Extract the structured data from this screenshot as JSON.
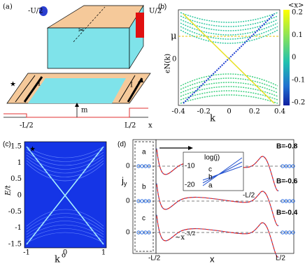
{
  "panel_a": {
    "label": "(a)",
    "voltage_left": "-U/2",
    "voltage_right": "U/2",
    "current_left": "I",
    "current_right": "I",
    "field": "m",
    "edge_left": "-L/2",
    "edge_right": "L/2",
    "axis": "x"
  },
  "panel_b": {
    "label": "(b)",
    "mu": "μ",
    "y_label": "ϵN(k)",
    "y_tick": "0",
    "x_label": "k",
    "x_ticks": [
      "-0.4",
      "-0.2",
      "0",
      "0.2",
      "0.4"
    ],
    "colorbar_label": "<x>",
    "colorbar_ticks": [
      "0.2",
      "0.1",
      "0",
      "-0.1",
      "-0.2"
    ]
  },
  "panel_c": {
    "label": "(c)",
    "y_label": "E/t",
    "y_ticks": [
      "1.5",
      "1",
      "0.5",
      "0",
      "-0.5",
      "-1",
      "-1.5"
    ],
    "x_ticks": [
      "-1",
      "0",
      "1"
    ],
    "x_label": "k",
    "x_zero": "o"
  },
  "panel_d": {
    "label": "(d)",
    "y_label": "j",
    "y_label_sub": "y",
    "row_labels": [
      "a",
      "b",
      "c"
    ],
    "row_zero": [
      "0",
      "0",
      "0"
    ],
    "fields": [
      "B=-0.8",
      "B=-0.6",
      "B=-0.4"
    ],
    "x_label": "x",
    "edge_left": "-L/2",
    "edge_right": "L/2",
    "fit": "~x",
    "fit_exp": "-3/2",
    "inset": {
      "y_label": "log(j)",
      "y_ticks": [
        "-10",
        "-20"
      ],
      "x_label": "-L/2",
      "curves": [
        "c",
        "b",
        "a"
      ]
    }
  }
}
